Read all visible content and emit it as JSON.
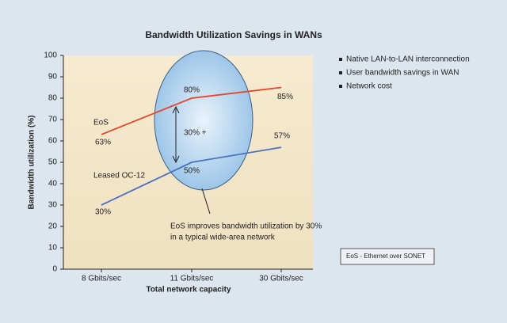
{
  "chart_data": {
    "type": "line",
    "title": "Bandwidth Utilization Savings in WANs",
    "x_label": "Total network capacity",
    "y_label": "Bandwidth utilization (%)",
    "categories": [
      "8 Gbits/sec",
      "11 Gbits/sec",
      "30 Gbits/sec"
    ],
    "series": [
      {
        "name": "EoS",
        "color": "#e5452a",
        "values": [
          63,
          80,
          85
        ],
        "value_labels": [
          "63%",
          "80%",
          "85%"
        ]
      },
      {
        "name": "Leased OC-12",
        "color": "#4a72c0",
        "values": [
          30,
          50,
          57
        ],
        "value_labels": [
          "30%",
          "50%",
          "57%"
        ]
      }
    ],
    "ylim": [
      0,
      100
    ],
    "yticks": [
      0,
      10,
      20,
      30,
      40,
      50,
      60,
      70,
      80,
      90,
      100
    ],
    "grid": false,
    "gap_label": "30% +",
    "annotation": [
      "EoS improves bandwidth utilization by 30%",
      "in a typical wide-area network"
    ],
    "legend": [
      "Native LAN-to-LAN interconnection",
      "User bandwidth savings in WAN",
      "Network cost"
    ],
    "note": "EoS - Ethernet over SONET"
  }
}
